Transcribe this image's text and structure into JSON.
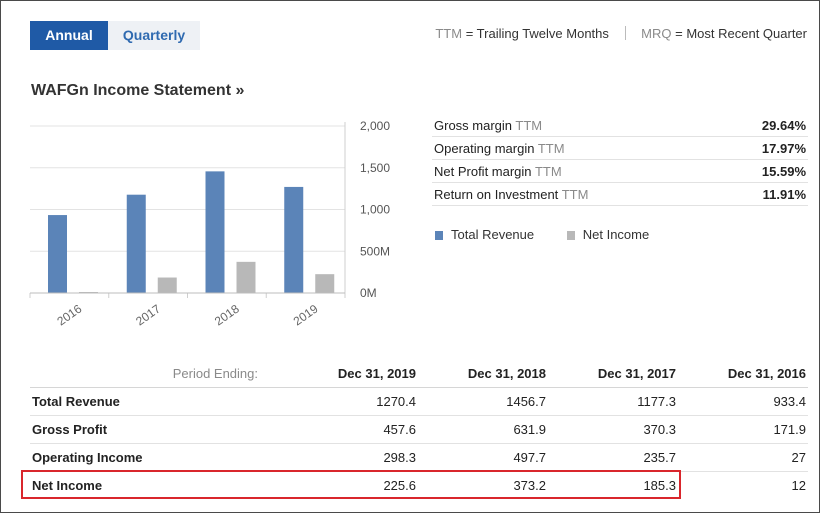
{
  "tabs": {
    "annual": "Annual",
    "quarterly": "Quarterly"
  },
  "legend_top": {
    "ttm_abbr": "TTM",
    "ttm_text": "= Trailing Twelve Months",
    "mrq_abbr": "MRQ",
    "mrq_text": "= Most Recent Quarter"
  },
  "section_title": "WAFGn Income Statement »",
  "ratios": [
    {
      "label": "Gross margin",
      "ttm": "TTM",
      "value": "29.64%"
    },
    {
      "label": "Operating margin",
      "ttm": "TTM",
      "value": "17.97%"
    },
    {
      "label": "Net Profit margin",
      "ttm": "TTM",
      "value": "15.59%"
    },
    {
      "label": "Return on Investment",
      "ttm": "TTM",
      "value": "11.91%"
    }
  ],
  "chart_legend": {
    "revenue": "Total Revenue",
    "net_income": "Net Income"
  },
  "colors": {
    "revenue": "#5b84b8",
    "net_income": "#b8b8b8",
    "accent": "#1f5aa6",
    "highlight": "#d9262c"
  },
  "chart_data": {
    "type": "bar",
    "categories": [
      "2016",
      "2017",
      "2018",
      "2019"
    ],
    "series": [
      {
        "name": "Total Revenue",
        "values": [
          933.4,
          1177.3,
          1456.7,
          1270.4
        ]
      },
      {
        "name": "Net Income",
        "values": [
          12,
          185.3,
          373.2,
          225.6
        ]
      }
    ],
    "yticks": [
      "0M",
      "500M",
      "1,000",
      "1,500",
      "2,000"
    ],
    "ylim": [
      0,
      2000
    ],
    "title": "",
    "xlabel": "",
    "ylabel": ""
  },
  "table": {
    "period_label": "Period Ending:",
    "columns": [
      "Dec 31, 2019",
      "Dec 31, 2018",
      "Dec 31, 2017",
      "Dec 31, 2016"
    ],
    "rows": [
      {
        "label": "Total Revenue",
        "values": [
          "1270.4",
          "1456.7",
          "1177.3",
          "933.4"
        ]
      },
      {
        "label": "Gross Profit",
        "values": [
          "457.6",
          "631.9",
          "370.3",
          "171.9"
        ]
      },
      {
        "label": "Operating Income",
        "values": [
          "298.3",
          "497.7",
          "235.7",
          "27"
        ]
      },
      {
        "label": "Net Income",
        "values": [
          "225.6",
          "373.2",
          "185.3",
          "12"
        ]
      }
    ]
  }
}
